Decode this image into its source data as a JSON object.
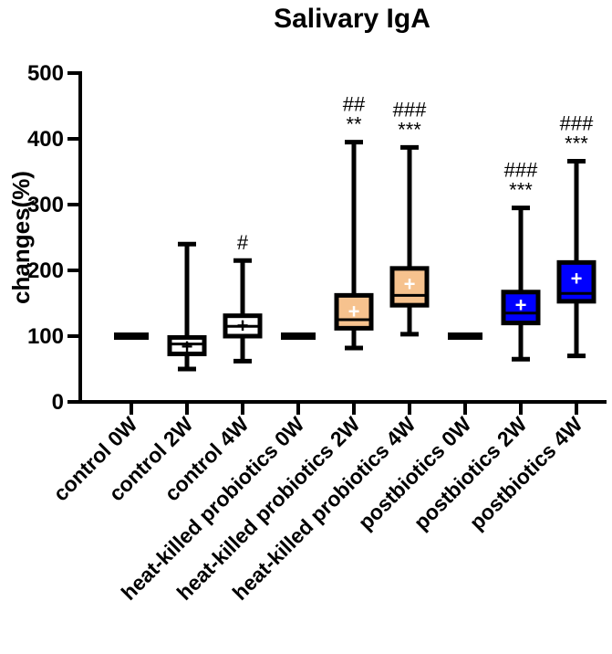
{
  "chart_data": {
    "type": "box",
    "title": "Salivary IgA",
    "xlabel": "",
    "ylabel": "changes(%)",
    "ylim": [
      0,
      500
    ],
    "yticks": [
      "0",
      "100",
      "200",
      "300",
      "400",
      "500"
    ],
    "grid": false,
    "categories": [
      "control 0W",
      "control 2W",
      "control 4W",
      "heat-killed probiotics 0W",
      "heat-killed probiotics 2W",
      "heat-killed probiotics 4W",
      "postbiotics 0W",
      "postbiotics 2W",
      "postbiotics 4W"
    ],
    "boxes": [
      {
        "min": 100,
        "q1": 100,
        "median": 100,
        "q3": 100,
        "max": 100,
        "mean": 100,
        "fill": "#ffffff",
        "annotation": []
      },
      {
        "min": 50,
        "q1": 73,
        "median": 88,
        "q3": 98,
        "max": 240,
        "mean": 85,
        "fill": "#ffffff",
        "annotation": []
      },
      {
        "min": 62,
        "q1": 100,
        "median": 115,
        "q3": 131,
        "max": 215,
        "mean": 117,
        "fill": "#ffffff",
        "annotation": [
          "#"
        ]
      },
      {
        "min": 100,
        "q1": 100,
        "median": 100,
        "q3": 100,
        "max": 100,
        "mean": 100,
        "fill": "#f6c28e",
        "annotation": []
      },
      {
        "min": 82,
        "q1": 112,
        "median": 125,
        "q3": 162,
        "max": 395,
        "mean": 138,
        "fill": "#f6c28e",
        "annotation": [
          "##",
          "**"
        ]
      },
      {
        "min": 103,
        "q1": 147,
        "median": 162,
        "q3": 203,
        "max": 387,
        "mean": 180,
        "fill": "#f6c28e",
        "annotation": [
          "###",
          "***"
        ]
      },
      {
        "min": 100,
        "q1": 100,
        "median": 100,
        "q3": 100,
        "max": 100,
        "mean": 100,
        "fill": "#0000ff",
        "annotation": []
      },
      {
        "min": 65,
        "q1": 120,
        "median": 135,
        "q3": 167,
        "max": 295,
        "mean": 148,
        "fill": "#0000ff",
        "annotation": [
          "###",
          "***"
        ]
      },
      {
        "min": 70,
        "q1": 153,
        "median": 165,
        "q3": 212,
        "max": 366,
        "mean": 188,
        "fill": "#0000ff",
        "annotation": [
          "###",
          "***"
        ]
      }
    ]
  }
}
